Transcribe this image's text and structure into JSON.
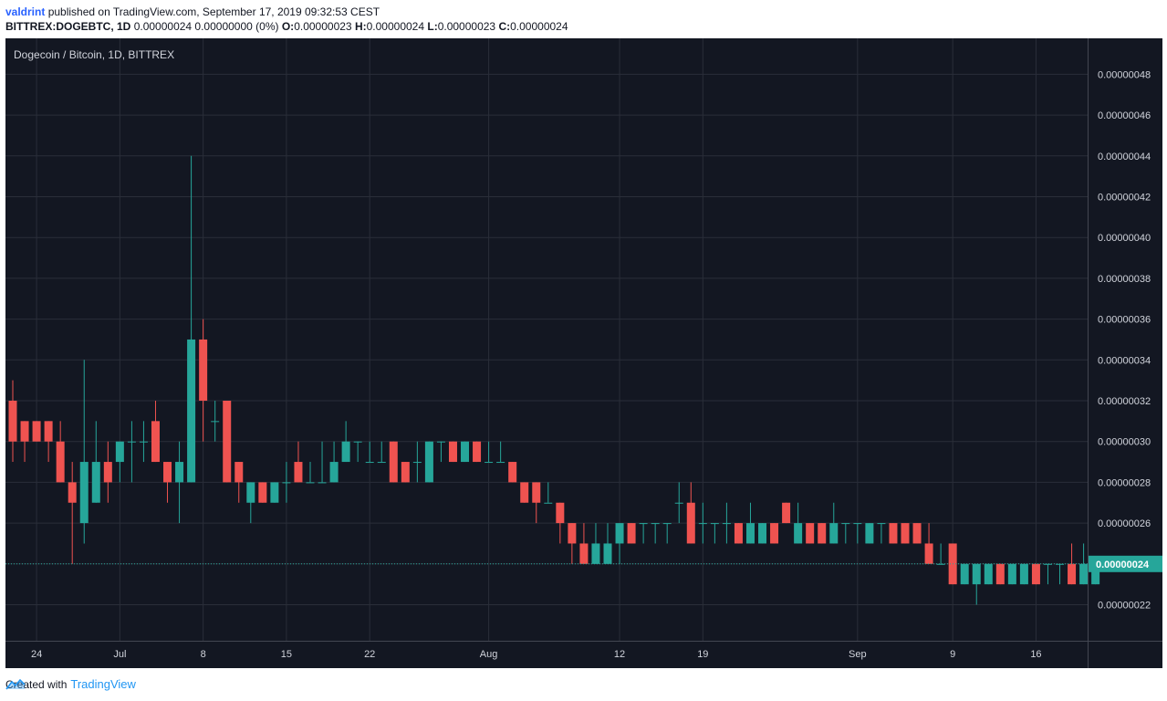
{
  "header": {
    "author": "valdrint",
    "published_text": "published on TradingView.com, September 17, 2019 09:32:53 CEST"
  },
  "quote_bar": {
    "symbol": "BITTREX:DOGEBTC, 1D",
    "change": "0.00000024 0.00000000 (0%)",
    "open_label": "O:",
    "open": "0.00000023",
    "high_label": "H:",
    "high": "0.00000024",
    "low_label": "L:",
    "low": "0.00000023",
    "close_label": "C:",
    "close": "0.00000024"
  },
  "footer": {
    "created_with": "Created with",
    "brand": "TradingView"
  },
  "colors": {
    "up": "#26a69a",
    "down": "#ef5350",
    "background": "#131722",
    "grid": "#2a2e39",
    "axis_text": "#d1d4dc",
    "price_tag": "#26a69a"
  },
  "chart_data": {
    "type": "candlestick",
    "title": "Dogecoin / Bitcoin, 1D, BITTREX",
    "scale_multiplier": 1e-08,
    "y_unit_note": "values in satoshi (x 0.00000001 BTC)",
    "ylim": [
      20.5,
      49.5
    ],
    "y_ticks": [
      "0.00000022",
      "0.00000024",
      "0.00000026",
      "0.00000028",
      "0.00000030",
      "0.00000032",
      "0.00000034",
      "0.00000036",
      "0.00000038",
      "0.00000040",
      "0.00000042",
      "0.00000044",
      "0.00000046",
      "0.00000048"
    ],
    "y_tick_values": [
      22,
      24,
      26,
      28,
      30,
      32,
      34,
      36,
      38,
      40,
      42,
      44,
      46,
      48
    ],
    "x_ticks": [
      {
        "label": "24",
        "index": 2
      },
      {
        "label": "Jul",
        "index": 9
      },
      {
        "label": "8",
        "index": 16
      },
      {
        "label": "15",
        "index": 23
      },
      {
        "label": "22",
        "index": 30
      },
      {
        "label": "Aug",
        "index": 40
      },
      {
        "label": "12",
        "index": 51
      },
      {
        "label": "19",
        "index": 58
      },
      {
        "label": "Sep",
        "index": 71
      },
      {
        "label": "9",
        "index": 79
      },
      {
        "label": "16",
        "index": 86
      }
    ],
    "current_price": 24,
    "current_price_label": "0.00000024",
    "candles": [
      [
        32,
        33,
        29,
        30
      ],
      [
        31,
        31,
        29,
        30
      ],
      [
        31,
        31,
        30,
        30
      ],
      [
        31,
        31,
        29,
        30
      ],
      [
        30,
        31,
        28,
        28
      ],
      [
        28,
        29,
        24,
        27
      ],
      [
        26,
        34,
        25,
        29
      ],
      [
        27,
        31,
        27,
        29
      ],
      [
        29,
        30,
        27,
        28
      ],
      [
        29,
        30,
        28,
        30
      ],
      [
        30,
        31,
        28,
        30
      ],
      [
        30,
        31,
        29,
        30
      ],
      [
        31,
        32,
        29,
        29
      ],
      [
        29,
        29,
        27,
        28
      ],
      [
        28,
        30,
        26,
        29
      ],
      [
        28,
        44,
        28,
        35
      ],
      [
        35,
        36,
        30,
        32
      ],
      [
        31,
        32,
        30,
        31
      ],
      [
        32,
        32,
        28,
        28
      ],
      [
        29,
        29,
        27,
        28
      ],
      [
        27,
        28,
        26,
        28
      ],
      [
        28,
        28,
        27,
        27
      ],
      [
        27,
        28,
        27,
        28
      ],
      [
        28,
        29,
        27,
        28
      ],
      [
        29,
        30,
        28,
        28
      ],
      [
        28,
        29,
        28,
        28
      ],
      [
        28,
        30,
        28,
        28
      ],
      [
        28,
        30,
        28,
        29
      ],
      [
        29,
        31,
        29,
        30
      ],
      [
        30,
        30,
        29,
        30
      ],
      [
        29,
        30,
        29,
        29
      ],
      [
        29,
        30,
        29,
        29
      ],
      [
        30,
        30,
        28,
        28
      ],
      [
        29,
        29,
        28,
        28
      ],
      [
        29,
        30,
        28,
        29
      ],
      [
        28,
        30,
        28,
        30
      ],
      [
        30,
        30,
        29,
        30
      ],
      [
        30,
        30,
        29,
        29
      ],
      [
        29,
        30,
        29,
        30
      ],
      [
        30,
        30,
        29,
        29
      ],
      [
        29,
        30,
        29,
        29
      ],
      [
        29,
        30,
        29,
        29
      ],
      [
        29,
        29,
        28,
        28
      ],
      [
        28,
        28,
        27,
        27
      ],
      [
        28,
        28,
        26,
        27
      ],
      [
        27,
        28,
        27,
        27
      ],
      [
        27,
        27,
        25,
        26
      ],
      [
        26,
        26,
        24,
        25
      ],
      [
        25,
        26,
        24,
        24
      ],
      [
        24,
        26,
        24,
        25
      ],
      [
        24,
        26,
        24,
        25
      ],
      [
        25,
        26,
        24,
        26
      ],
      [
        26,
        26,
        25,
        25
      ],
      [
        26,
        26,
        25,
        26
      ],
      [
        26,
        26,
        25,
        26
      ],
      [
        26,
        26,
        25,
        26
      ],
      [
        27,
        28,
        26,
        27
      ],
      [
        27,
        28,
        25,
        25
      ],
      [
        26,
        27,
        25,
        26
      ],
      [
        26,
        26,
        25,
        26
      ],
      [
        26,
        27,
        25,
        26
      ],
      [
        26,
        26,
        25,
        25
      ],
      [
        25,
        27,
        25,
        26
      ],
      [
        25,
        26,
        25,
        26
      ],
      [
        26,
        26,
        25,
        25
      ],
      [
        27,
        27,
        26,
        26
      ],
      [
        25,
        27,
        25,
        26
      ],
      [
        26,
        26,
        25,
        25
      ],
      [
        26,
        26,
        25,
        25
      ],
      [
        25,
        27,
        25,
        26
      ],
      [
        26,
        26,
        25,
        26
      ],
      [
        26,
        26,
        25,
        26
      ],
      [
        25,
        26,
        25,
        26
      ],
      [
        26,
        26,
        25,
        26
      ],
      [
        26,
        26,
        25,
        25
      ],
      [
        26,
        26,
        25,
        25
      ],
      [
        26,
        26,
        25,
        25
      ],
      [
        25,
        26,
        24,
        24
      ],
      [
        24,
        25,
        24,
        24
      ],
      [
        25,
        25,
        23,
        23
      ],
      [
        23,
        24,
        23,
        24
      ],
      [
        23,
        24,
        22,
        24
      ],
      [
        23,
        24,
        23,
        24
      ],
      [
        24,
        24,
        23,
        23
      ],
      [
        23,
        24,
        23,
        24
      ],
      [
        23,
        24,
        23,
        24
      ],
      [
        24,
        24,
        23,
        23
      ],
      [
        24,
        24,
        23,
        24
      ],
      [
        24,
        24,
        23,
        24
      ],
      [
        24,
        25,
        23,
        23
      ],
      [
        23,
        25,
        23,
        24
      ],
      [
        23,
        24,
        23,
        24
      ]
    ]
  }
}
